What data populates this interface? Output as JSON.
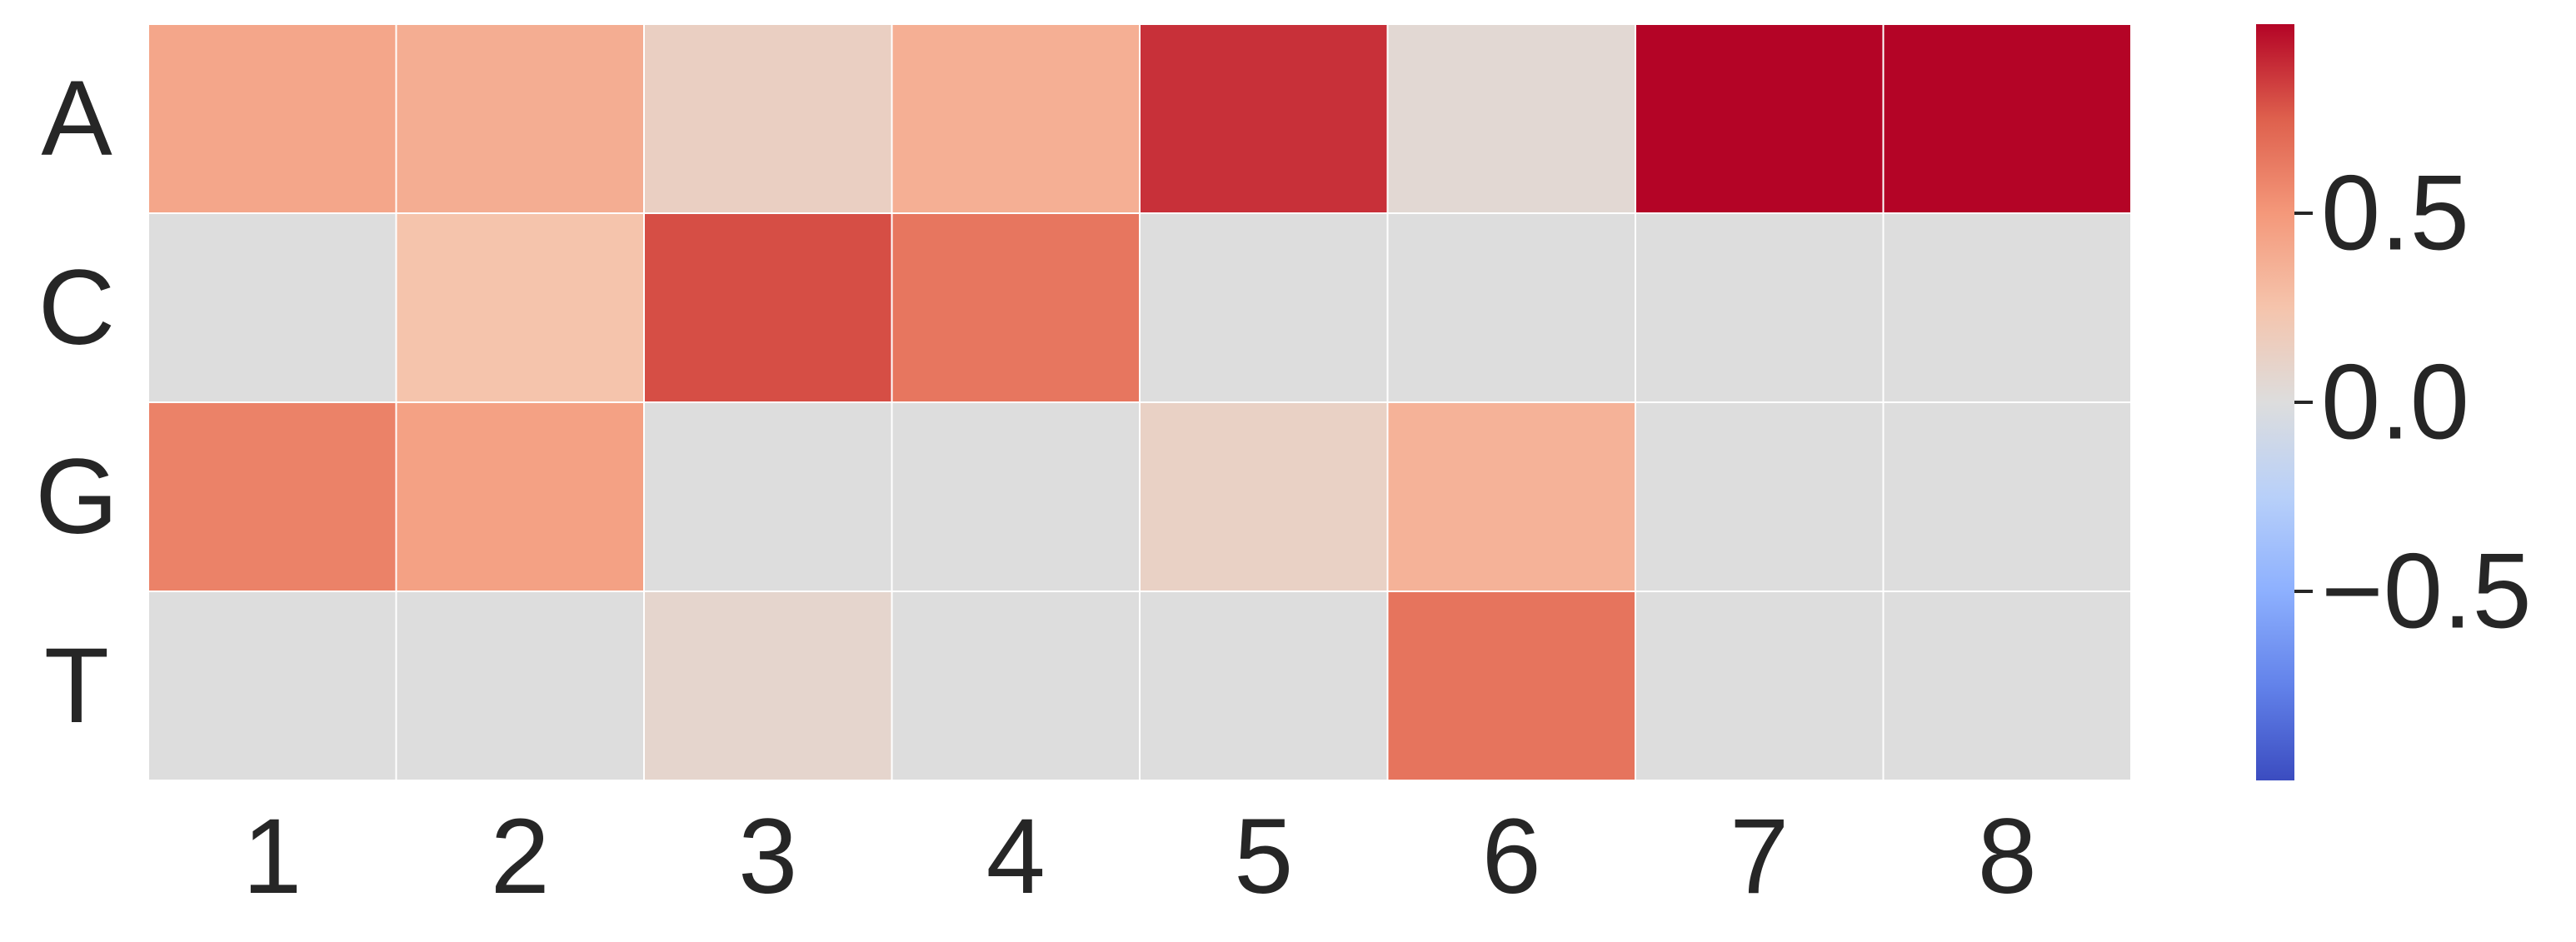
{
  "chart_data": {
    "type": "heatmap",
    "title": "",
    "xlabel": "",
    "ylabel": "",
    "x_categories": [
      "1",
      "2",
      "3",
      "4",
      "5",
      "6",
      "7",
      "8"
    ],
    "y_categories": [
      "A",
      "C",
      "G",
      "T"
    ],
    "values": [
      [
        0.42,
        0.38,
        0.14,
        0.37,
        0.88,
        0.05,
        1.0,
        1.0
      ],
      [
        0.0,
        0.25,
        0.8,
        0.65,
        0.0,
        0.0,
        0.0,
        0.0
      ],
      [
        0.6,
        0.45,
        0.0,
        0.0,
        0.12,
        0.35,
        0.0,
        0.0
      ],
      [
        0.0,
        0.0,
        0.08,
        0.0,
        0.0,
        0.66,
        0.0,
        0.0
      ]
    ],
    "colormap": "coolwarm",
    "colorbar": {
      "range": [
        -1.0,
        1.0
      ],
      "ticks": [
        0.5,
        0.0,
        -0.5
      ],
      "tick_labels": [
        "0.5",
        "0.0",
        "−0.5"
      ]
    },
    "grid": false
  }
}
